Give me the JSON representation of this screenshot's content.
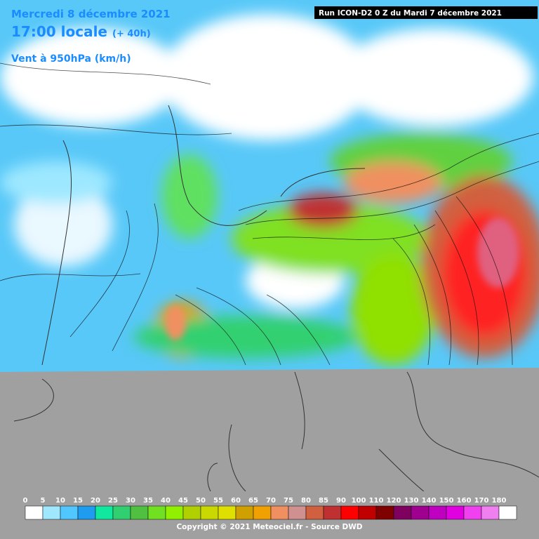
{
  "header": {
    "date": "Mercredi 8 décembre 2021",
    "time": "17:00 locale",
    "lead": "(+ 40h)",
    "parameter": "Vent à 950hPa (km/h)",
    "run": "Run ICON-D2 0 Z du Mardi 7 décembre 2021"
  },
  "legend": {
    "labels": [
      0,
      5,
      10,
      15,
      20,
      25,
      30,
      35,
      40,
      45,
      50,
      55,
      60,
      65,
      70,
      75,
      80,
      85,
      90,
      100,
      110,
      120,
      130,
      140,
      150,
      160,
      170,
      180
    ],
    "colors": [
      "#ffffff",
      "#a0e8ff",
      "#50c8ff",
      "#1e9cf0",
      "#10e8a0",
      "#30d070",
      "#50c040",
      "#70e020",
      "#90f000",
      "#b0d000",
      "#c8d800",
      "#e0e000",
      "#d0a000",
      "#f0a000",
      "#f09060",
      "#d09090",
      "#d06040",
      "#c03030",
      "#ff0000",
      "#c00000",
      "#800000",
      "#800060",
      "#a00090",
      "#c000c0",
      "#e000e0",
      "#f040f0",
      "#f080f0",
      "#ffffff"
    ]
  },
  "footer": {
    "copyright": "Copyright © 2021 Meteociel.fr - Source DWD"
  }
}
